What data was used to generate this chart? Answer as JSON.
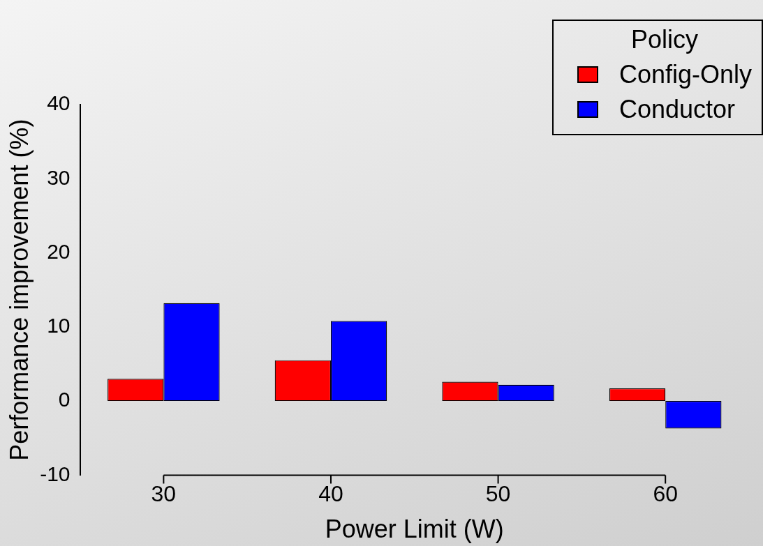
{
  "chart_data": {
    "type": "bar",
    "xlabel": "Power Limit (W)",
    "ylabel": "Performance improvement (%)",
    "legend_title": "Policy",
    "legend": "top right",
    "grid": false,
    "categories": [
      "30",
      "40",
      "50",
      "60"
    ],
    "series": [
      {
        "name": "Config-Only",
        "color": "#ff0000",
        "values": [
          3.0,
          5.5,
          2.6,
          1.7
        ]
      },
      {
        "name": "Conductor",
        "color": "#0000ff",
        "values": [
          13.2,
          10.8,
          2.2,
          -3.7
        ]
      }
    ],
    "ylim": [
      -10,
      40
    ],
    "yticks": [
      -10,
      0,
      10,
      20,
      30,
      40
    ]
  }
}
